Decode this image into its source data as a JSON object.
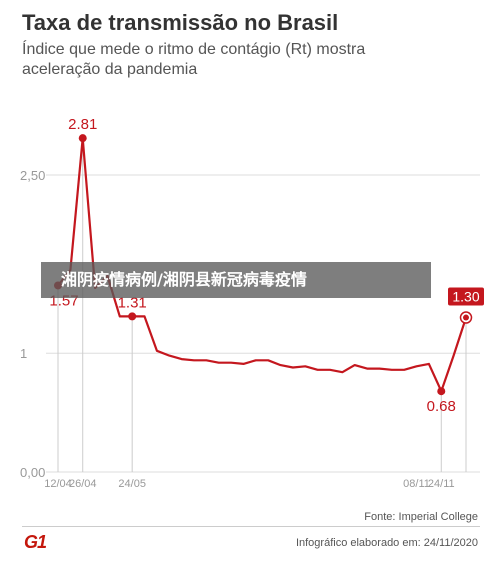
{
  "header": {
    "title": "Taxa de transmissão no Brasil",
    "subtitle": "Índice que mede o ritmo de contágio (Rt) mostra\naceleração da pandemia"
  },
  "overlay": {
    "text": "湘阴疫情病例/湘阴县新冠病毒疫情"
  },
  "footer": {
    "source": "Fonte: Imperial College",
    "logo": "G1",
    "credit": "Infográfico elaborado em: 24/11/2020"
  },
  "colors": {
    "line": "#c4171e",
    "grid": "#dddddd",
    "axis_text": "#999999",
    "highlight_box": "#c4171e"
  },
  "chart_data": {
    "type": "line",
    "title": "Taxa de transmissão no Brasil",
    "xlabel": "",
    "ylabel": "",
    "ylim": [
      0,
      3.2
    ],
    "yticks": [
      {
        "value": 0,
        "label": "0,00"
      },
      {
        "value": 1,
        "label": "1"
      },
      {
        "value": 2.5,
        "label": "2,50"
      }
    ],
    "xticks": [
      {
        "index": 0,
        "label": "12/04"
      },
      {
        "index": 2,
        "label": "26/04"
      },
      {
        "index": 6,
        "label": "24/05"
      },
      {
        "index": 29,
        "label": "08/11"
      },
      {
        "index": 31,
        "label": "24/11"
      }
    ],
    "series": [
      {
        "values": [
          1.57,
          1.7,
          2.81,
          1.55,
          1.65,
          1.31,
          1.31,
          1.31,
          1.02,
          0.98,
          0.95,
          0.94,
          0.94,
          0.92,
          0.92,
          0.91,
          0.94,
          0.94,
          0.9,
          0.88,
          0.89,
          0.86,
          0.86,
          0.84,
          0.9,
          0.87,
          0.87,
          0.86,
          0.86,
          0.89,
          0.91,
          0.68,
          0.98,
          1.3
        ]
      }
    ],
    "annotations": [
      {
        "index": 0,
        "label": "1.57"
      },
      {
        "index": 2,
        "label": "2.81"
      },
      {
        "index": 6,
        "label": "1.31"
      },
      {
        "index": 31,
        "label": "0.68"
      },
      {
        "index": 33,
        "label": "1.30",
        "boxed": true
      }
    ],
    "grid": true
  }
}
